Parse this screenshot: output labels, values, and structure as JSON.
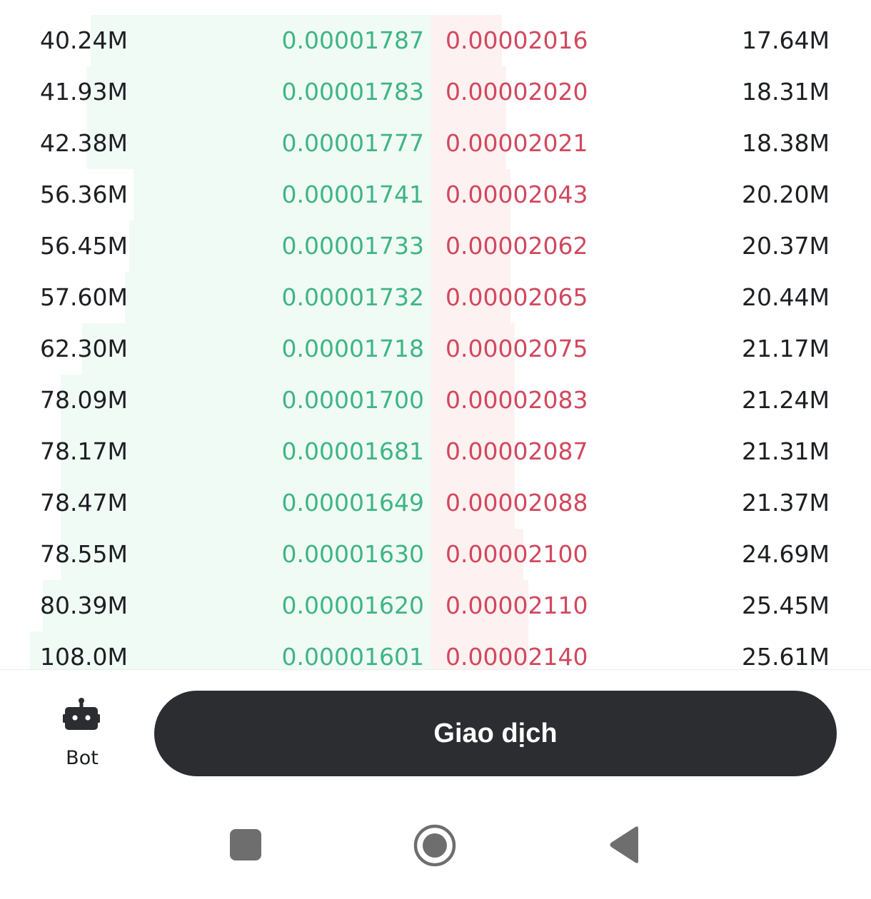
{
  "order_book": {
    "rows": [
      {
        "bid_qty": "40.24M",
        "bid_price": "0.00001787",
        "ask_price": "0.00002016",
        "ask_qty": "17.64M",
        "bid_depth": 0.79,
        "ask_depth": 0.16
      },
      {
        "bid_qty": "41.93M",
        "bid_price": "0.00001783",
        "ask_price": "0.00002020",
        "ask_qty": "18.31M",
        "bid_depth": 0.8,
        "ask_depth": 0.17
      },
      {
        "bid_qty": "42.38M",
        "bid_price": "0.00001777",
        "ask_price": "0.00002021",
        "ask_qty": "18.38M",
        "bid_depth": 0.8,
        "ask_depth": 0.17
      },
      {
        "bid_qty": "56.36M",
        "bid_price": "0.00001741",
        "ask_price": "0.00002043",
        "ask_qty": "20.20M",
        "bid_depth": 0.69,
        "ask_depth": 0.18
      },
      {
        "bid_qty": "56.45M",
        "bid_price": "0.00001733",
        "ask_price": "0.00002062",
        "ask_qty": "20.37M",
        "bid_depth": 0.7,
        "ask_depth": 0.18
      },
      {
        "bid_qty": "57.60M",
        "bid_price": "0.00001732",
        "ask_price": "0.00002065",
        "ask_qty": "20.44M",
        "bid_depth": 0.71,
        "ask_depth": 0.18
      },
      {
        "bid_qty": "62.30M",
        "bid_price": "0.00001718",
        "ask_price": "0.00002075",
        "ask_qty": "21.17M",
        "bid_depth": 0.81,
        "ask_depth": 0.19
      },
      {
        "bid_qty": "78.09M",
        "bid_price": "0.00001700",
        "ask_price": "0.00002083",
        "ask_qty": "21.24M",
        "bid_depth": 0.86,
        "ask_depth": 0.19
      },
      {
        "bid_qty": "78.17M",
        "bid_price": "0.00001681",
        "ask_price": "0.00002087",
        "ask_qty": "21.31M",
        "bid_depth": 0.86,
        "ask_depth": 0.19
      },
      {
        "bid_qty": "78.47M",
        "bid_price": "0.00001649",
        "ask_price": "0.00002088",
        "ask_qty": "21.37M",
        "bid_depth": 0.86,
        "ask_depth": 0.19
      },
      {
        "bid_qty": "78.55M",
        "bid_price": "0.00001630",
        "ask_price": "0.00002100",
        "ask_qty": "24.69M",
        "bid_depth": 0.86,
        "ask_depth": 0.21
      },
      {
        "bid_qty": "80.39M",
        "bid_price": "0.00001620",
        "ask_price": "0.00002110",
        "ask_qty": "25.45M",
        "bid_depth": 0.9,
        "ask_depth": 0.22
      },
      {
        "bid_qty": "108.0M",
        "bid_price": "0.00001601",
        "ask_price": "0.00002140",
        "ask_qty": "25.61M",
        "bid_depth": 0.93,
        "ask_depth": 0.22
      }
    ]
  },
  "bottom_bar": {
    "bot_label": "Bot",
    "bot_icon": "robot-icon",
    "trade_label": "Giao dịch"
  },
  "system_nav": {
    "recents_icon": "square-icon",
    "home_icon": "circle-icon",
    "back_icon": "triangle-back-icon"
  },
  "colors": {
    "bid_price": "#3fb585",
    "ask_price": "#d1485e",
    "bid_depth_bg": "#f1fbf6",
    "ask_depth_bg": "#fdf1f1",
    "button_bg": "#2b2d31"
  }
}
